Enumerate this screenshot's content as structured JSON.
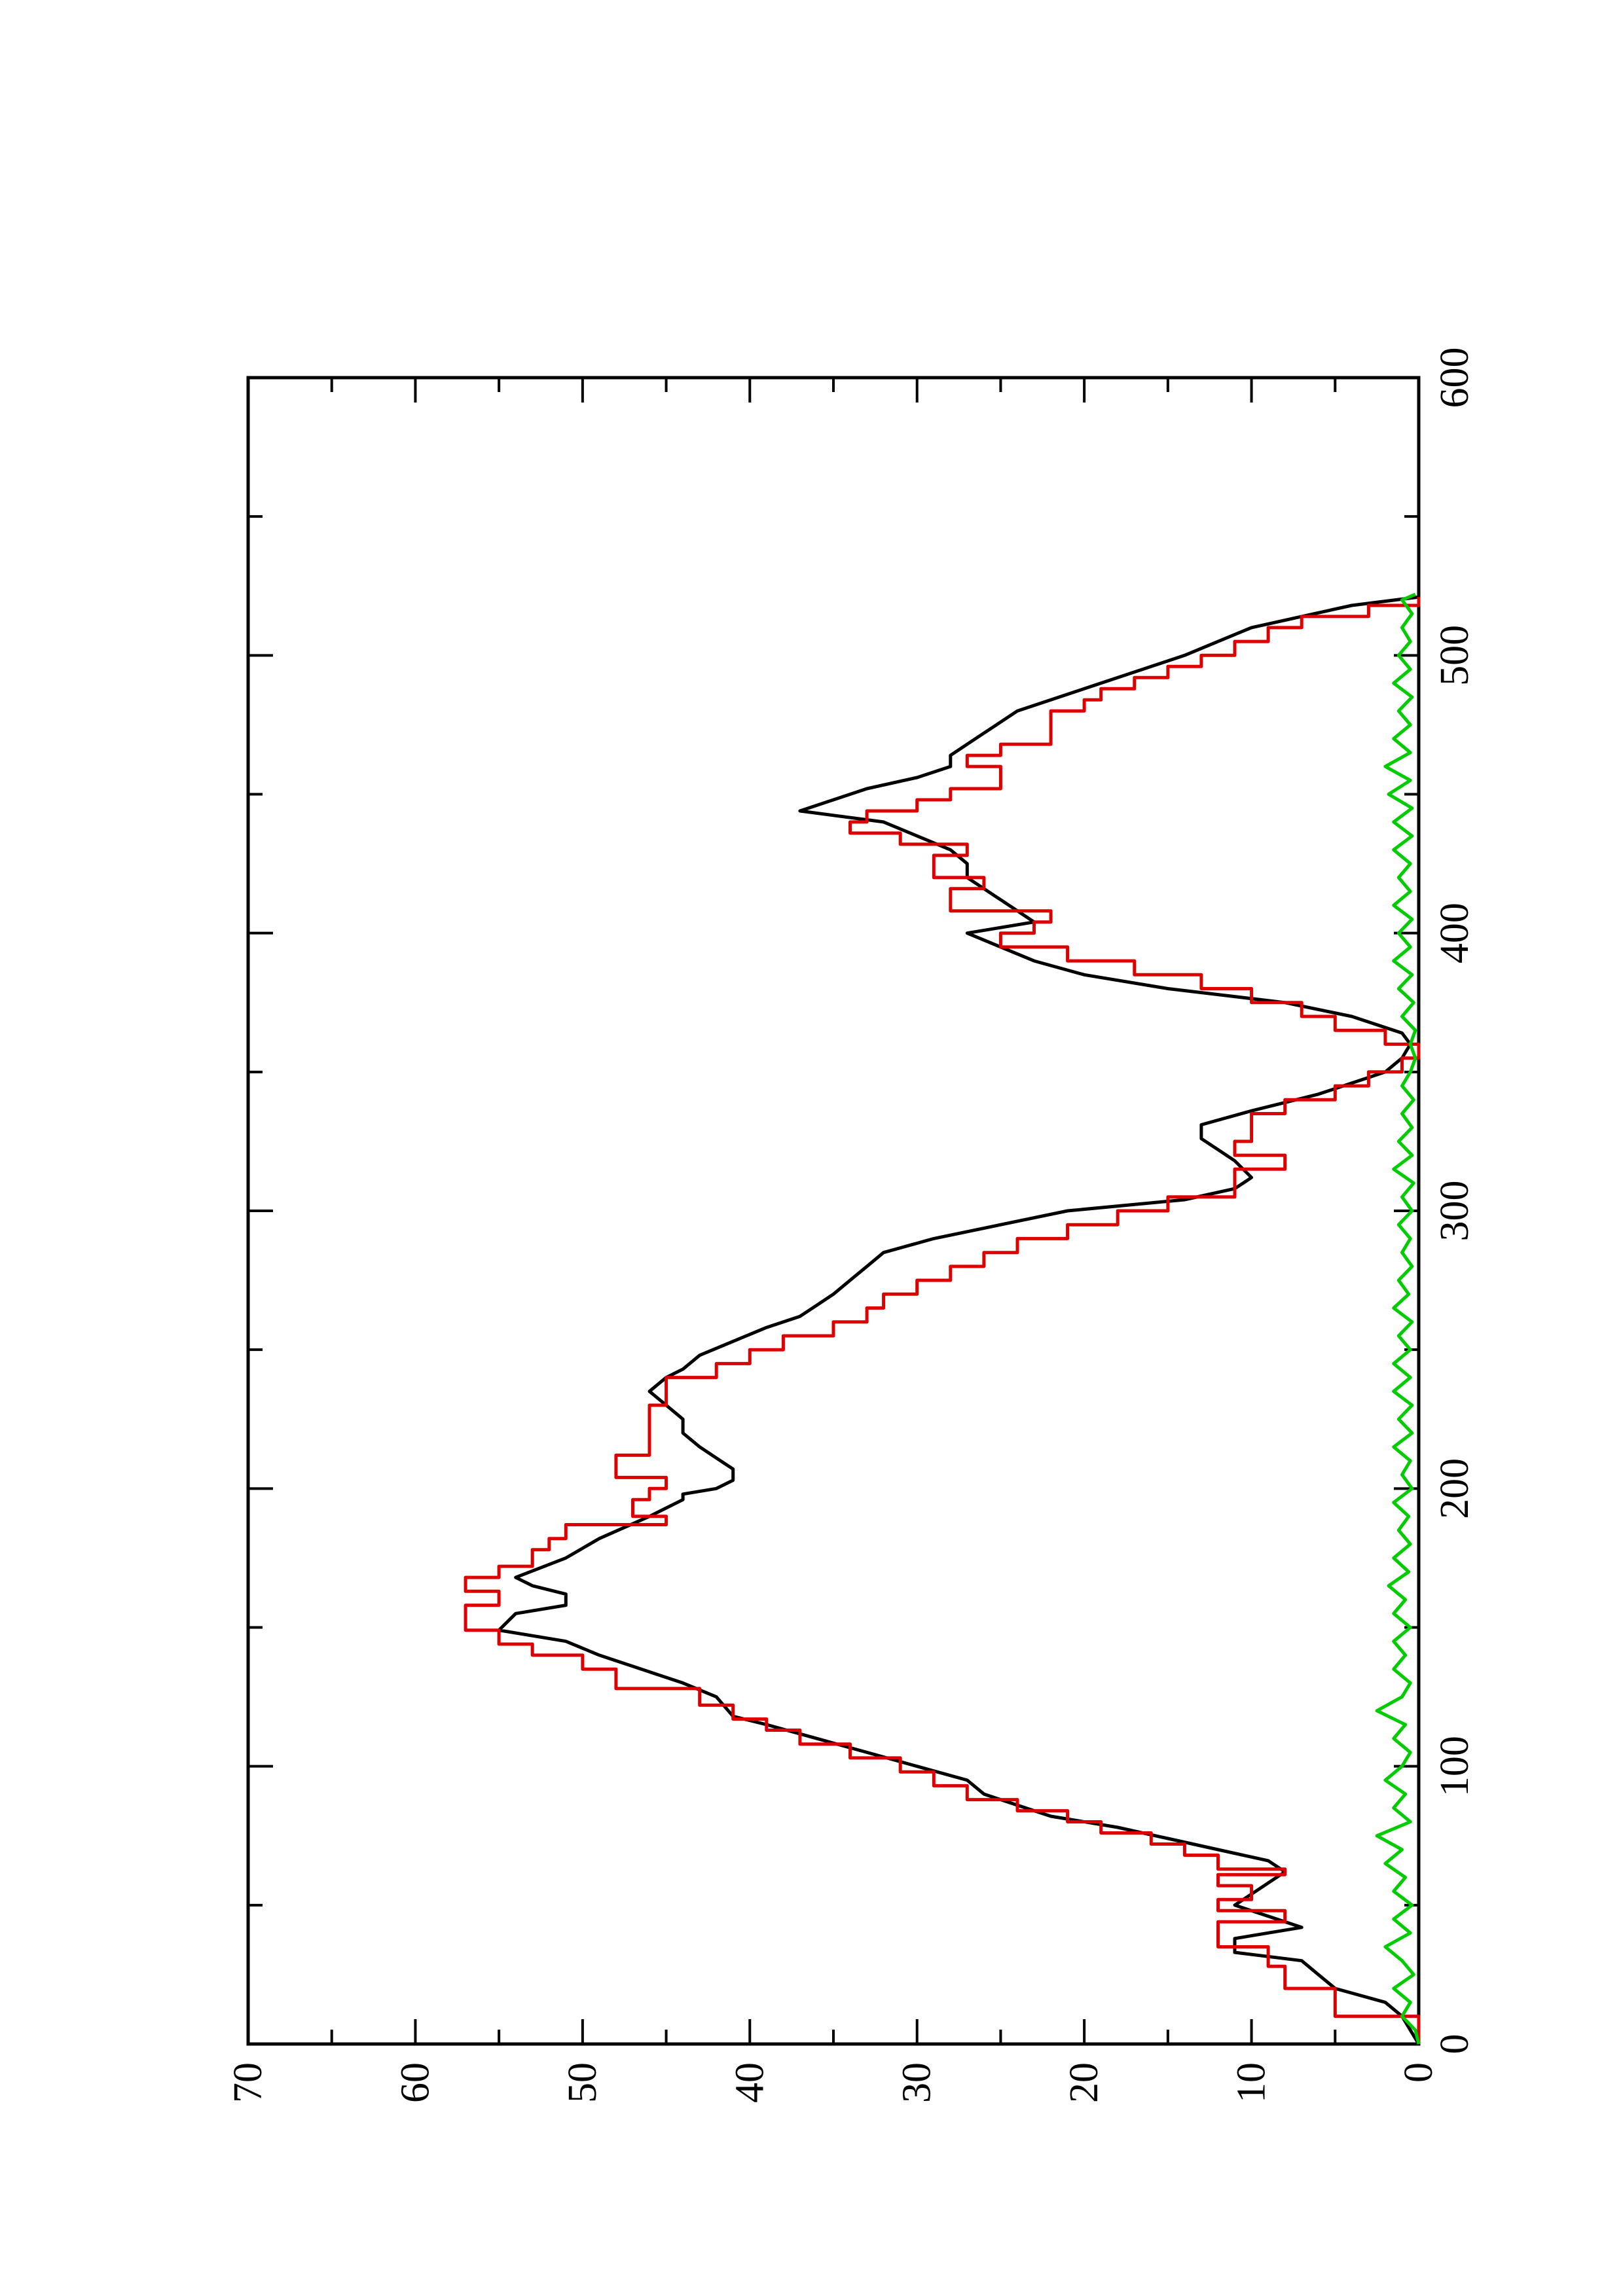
{
  "chart_data": {
    "type": "line",
    "title": "",
    "xlabel": "",
    "ylabel": "",
    "xlim": [
      0,
      600
    ],
    "ylim": [
      0,
      70
    ],
    "x_ticks": [
      0,
      100,
      200,
      300,
      400,
      500,
      600
    ],
    "y_ticks": [
      0,
      10,
      20,
      30,
      40,
      50,
      60,
      70
    ],
    "orientation": "rotated 90° counter-clockwise on the page",
    "grid": false,
    "legend": "none",
    "series": [
      {
        "color": "#000000",
        "shape": "line",
        "points": [
          [
            0,
            0
          ],
          [
            5,
            0.5
          ],
          [
            10,
            1
          ],
          [
            15,
            2
          ],
          [
            20,
            5
          ],
          [
            25,
            6
          ],
          [
            30,
            7
          ],
          [
            33,
            11
          ],
          [
            38,
            11
          ],
          [
            42,
            7
          ],
          [
            46,
            9
          ],
          [
            50,
            11
          ],
          [
            54,
            10
          ],
          [
            58,
            9
          ],
          [
            62,
            8
          ],
          [
            66,
            9
          ],
          [
            70,
            12
          ],
          [
            74,
            15
          ],
          [
            78,
            18
          ],
          [
            82,
            22
          ],
          [
            86,
            24
          ],
          [
            90,
            26
          ],
          [
            95,
            27
          ],
          [
            100,
            30
          ],
          [
            105,
            33
          ],
          [
            110,
            36
          ],
          [
            115,
            39
          ],
          [
            118,
            41
          ],
          [
            125,
            42
          ],
          [
            130,
            44
          ],
          [
            136,
            47
          ],
          [
            140,
            49
          ],
          [
            145,
            51
          ],
          [
            149,
            55
          ],
          [
            155,
            54
          ],
          [
            158,
            51
          ],
          [
            162,
            51
          ],
          [
            165,
            53
          ],
          [
            168,
            54
          ],
          [
            175,
            51
          ],
          [
            182,
            49
          ],
          [
            190,
            46
          ],
          [
            196,
            44
          ],
          [
            198,
            44
          ],
          [
            200,
            42
          ],
          [
            203,
            41
          ],
          [
            207,
            41
          ],
          [
            211,
            42
          ],
          [
            215,
            43
          ],
          [
            220,
            44
          ],
          [
            225,
            44
          ],
          [
            230,
            45
          ],
          [
            235,
            46
          ],
          [
            240,
            45
          ],
          [
            243,
            44
          ],
          [
            248,
            43
          ],
          [
            253,
            41
          ],
          [
            258,
            39
          ],
          [
            262,
            37
          ],
          [
            266,
            36
          ],
          [
            270,
            35
          ],
          [
            275,
            34
          ],
          [
            280,
            33
          ],
          [
            285,
            32
          ],
          [
            290,
            29
          ],
          [
            295,
            25
          ],
          [
            300,
            21
          ],
          [
            304,
            14
          ],
          [
            308,
            11
          ],
          [
            312,
            10
          ],
          [
            318,
            11
          ],
          [
            322,
            12
          ],
          [
            326,
            13
          ],
          [
            331,
            13
          ],
          [
            336,
            10
          ],
          [
            342,
            6
          ],
          [
            346,
            4
          ],
          [
            350,
            2
          ],
          [
            355,
            1
          ],
          [
            360,
            0.5
          ],
          [
            364,
            1
          ],
          [
            370,
            4
          ],
          [
            375,
            8
          ],
          [
            380,
            15
          ],
          [
            385,
            20
          ],
          [
            390,
            23
          ],
          [
            395,
            25
          ],
          [
            400,
            27
          ],
          [
            404,
            23
          ],
          [
            408,
            24
          ],
          [
            412,
            25
          ],
          [
            416,
            26
          ],
          [
            420,
            27
          ],
          [
            425,
            27
          ],
          [
            430,
            28
          ],
          [
            435,
            30
          ],
          [
            440,
            32
          ],
          [
            444,
            37
          ],
          [
            448,
            35
          ],
          [
            452,
            33
          ],
          [
            456,
            30
          ],
          [
            460,
            28
          ],
          [
            464,
            28
          ],
          [
            468,
            27
          ],
          [
            472,
            26
          ],
          [
            476,
            25
          ],
          [
            480,
            24
          ],
          [
            484,
            22
          ],
          [
            488,
            20
          ],
          [
            492,
            18
          ],
          [
            496,
            16
          ],
          [
            500,
            14
          ],
          [
            505,
            12
          ],
          [
            510,
            10
          ],
          [
            514,
            7
          ],
          [
            518,
            4
          ],
          [
            521,
            0
          ]
        ]
      },
      {
        "color": "#dd0000",
        "shape": "step",
        "points": [
          [
            0,
            0
          ],
          [
            10,
            0
          ],
          [
            20,
            5
          ],
          [
            28,
            8
          ],
          [
            35,
            9
          ],
          [
            40,
            12
          ],
          [
            44,
            12
          ],
          [
            48,
            8
          ],
          [
            52,
            12
          ],
          [
            57,
            10
          ],
          [
            61,
            12
          ],
          [
            63,
            8
          ],
          [
            68,
            12
          ],
          [
            72,
            14
          ],
          [
            76,
            16
          ],
          [
            80,
            19
          ],
          [
            84,
            21
          ],
          [
            88,
            24
          ],
          [
            93,
            27
          ],
          [
            98,
            29
          ],
          [
            103,
            31
          ],
          [
            108,
            34
          ],
          [
            113,
            37
          ],
          [
            117,
            39
          ],
          [
            122,
            41
          ],
          [
            128,
            43
          ],
          [
            135,
            48
          ],
          [
            140,
            50
          ],
          [
            144,
            53
          ],
          [
            149,
            55
          ],
          [
            154,
            57
          ],
          [
            158,
            57
          ],
          [
            163,
            55
          ],
          [
            168,
            57
          ],
          [
            172,
            55
          ],
          [
            178,
            53
          ],
          [
            182,
            52
          ],
          [
            187,
            51
          ],
          [
            190,
            45
          ],
          [
            193,
            47
          ],
          [
            196,
            47
          ],
          [
            200,
            46
          ],
          [
            204,
            45
          ],
          [
            208,
            48
          ],
          [
            212,
            48
          ],
          [
            216,
            46
          ],
          [
            220,
            46
          ],
          [
            225,
            46
          ],
          [
            230,
            46
          ],
          [
            235,
            45
          ],
          [
            240,
            45
          ],
          [
            245,
            42
          ],
          [
            250,
            40
          ],
          [
            255,
            38
          ],
          [
            260,
            35
          ],
          [
            265,
            33
          ],
          [
            270,
            32
          ],
          [
            275,
            30
          ],
          [
            280,
            28
          ],
          [
            285,
            26
          ],
          [
            290,
            24
          ],
          [
            295,
            21
          ],
          [
            300,
            18
          ],
          [
            305,
            15
          ],
          [
            310,
            11
          ],
          [
            315,
            11
          ],
          [
            320,
            8
          ],
          [
            325,
            11
          ],
          [
            330,
            10
          ],
          [
            335,
            10
          ],
          [
            340,
            8
          ],
          [
            345,
            5
          ],
          [
            350,
            3
          ],
          [
            355,
            1
          ],
          [
            360,
            0
          ],
          [
            365,
            2
          ],
          [
            370,
            5
          ],
          [
            375,
            7
          ],
          [
            380,
            10
          ],
          [
            385,
            13
          ],
          [
            390,
            17
          ],
          [
            395,
            21
          ],
          [
            400,
            25
          ],
          [
            404,
            23
          ],
          [
            408,
            22
          ],
          [
            412,
            28
          ],
          [
            416,
            28
          ],
          [
            420,
            26
          ],
          [
            424,
            29
          ],
          [
            428,
            29
          ],
          [
            432,
            27
          ],
          [
            436,
            31
          ],
          [
            440,
            34
          ],
          [
            444,
            33
          ],
          [
            448,
            30
          ],
          [
            452,
            28
          ],
          [
            456,
            25
          ],
          [
            460,
            25
          ],
          [
            464,
            27
          ],
          [
            468,
            25
          ],
          [
            472,
            22
          ],
          [
            476,
            22
          ],
          [
            480,
            22
          ],
          [
            484,
            20
          ],
          [
            488,
            19
          ],
          [
            492,
            17
          ],
          [
            496,
            15
          ],
          [
            500,
            13
          ],
          [
            505,
            11
          ],
          [
            510,
            9
          ],
          [
            514,
            7
          ],
          [
            518,
            3
          ],
          [
            521,
            0
          ]
        ]
      },
      {
        "color": "#00cc00",
        "shape": "line",
        "points": [
          [
            0,
            0
          ],
          [
            5,
            0.2
          ],
          [
            10,
            1
          ],
          [
            15,
            0.5
          ],
          [
            20,
            1.5
          ],
          [
            25,
            0.3
          ],
          [
            30,
            1
          ],
          [
            35,
            2
          ],
          [
            40,
            0.5
          ],
          [
            45,
            1.5
          ],
          [
            50,
            0.4
          ],
          [
            55,
            1.5
          ],
          [
            60,
            0.8
          ],
          [
            65,
            2
          ],
          [
            70,
            1
          ],
          [
            75,
            2.5
          ],
          [
            80,
            0.5
          ],
          [
            85,
            1.5
          ],
          [
            90,
            0.8
          ],
          [
            95,
            2
          ],
          [
            100,
            1
          ],
          [
            105,
            0.5
          ],
          [
            110,
            1.5
          ],
          [
            115,
            0.8
          ],
          [
            120,
            2.5
          ],
          [
            125,
            1
          ],
          [
            130,
            0.5
          ],
          [
            135,
            1.5
          ],
          [
            140,
            0.8
          ],
          [
            145,
            1.5
          ],
          [
            150,
            0.5
          ],
          [
            155,
            1.5
          ],
          [
            160,
            0.8
          ],
          [
            165,
            1.8
          ],
          [
            170,
            0.6
          ],
          [
            175,
            1.5
          ],
          [
            180,
            0.5
          ],
          [
            185,
            1.2
          ],
          [
            190,
            0.6
          ],
          [
            195,
            1.5
          ],
          [
            200,
            0.4
          ],
          [
            205,
            1
          ],
          [
            210,
            0.5
          ],
          [
            215,
            1.5
          ],
          [
            220,
            0.4
          ],
          [
            225,
            1.2
          ],
          [
            230,
            0.4
          ],
          [
            235,
            1.5
          ],
          [
            240,
            0.5
          ],
          [
            245,
            1.5
          ],
          [
            250,
            0.5
          ],
          [
            255,
            1.2
          ],
          [
            260,
            0.4
          ],
          [
            265,
            1.5
          ],
          [
            270,
            0.6
          ],
          [
            275,
            1.2
          ],
          [
            280,
            0.4
          ],
          [
            285,
            1
          ],
          [
            290,
            0.5
          ],
          [
            295,
            1.2
          ],
          [
            300,
            0.4
          ],
          [
            305,
            1
          ],
          [
            310,
            0.3
          ],
          [
            315,
            1.5
          ],
          [
            320,
            0.4
          ],
          [
            325,
            1.2
          ],
          [
            330,
            0.4
          ],
          [
            335,
            1
          ],
          [
            340,
            0.3
          ],
          [
            345,
            1
          ],
          [
            350,
            0.5
          ],
          [
            355,
            0.2
          ],
          [
            360,
            0.5
          ],
          [
            365,
            0.2
          ],
          [
            370,
            1
          ],
          [
            375,
            0.3
          ],
          [
            380,
            1.2
          ],
          [
            385,
            0.4
          ],
          [
            390,
            1.5
          ],
          [
            395,
            0.5
          ],
          [
            400,
            1.2
          ],
          [
            405,
            0.4
          ],
          [
            410,
            1.5
          ],
          [
            415,
            0.5
          ],
          [
            420,
            1.2
          ],
          [
            425,
            0.5
          ],
          [
            430,
            1.5
          ],
          [
            435,
            0.4
          ],
          [
            440,
            1.5
          ],
          [
            445,
            0.4
          ],
          [
            450,
            1.8
          ],
          [
            455,
            0.5
          ],
          [
            460,
            2
          ],
          [
            465,
            0.5
          ],
          [
            470,
            1.5
          ],
          [
            475,
            0.5
          ],
          [
            480,
            1.2
          ],
          [
            485,
            0.4
          ],
          [
            490,
            1.5
          ],
          [
            495,
            0.5
          ],
          [
            500,
            1.2
          ],
          [
            505,
            0.5
          ],
          [
            510,
            1
          ],
          [
            515,
            0.4
          ],
          [
            520,
            1
          ],
          [
            522,
            0.2
          ]
        ]
      }
    ]
  }
}
